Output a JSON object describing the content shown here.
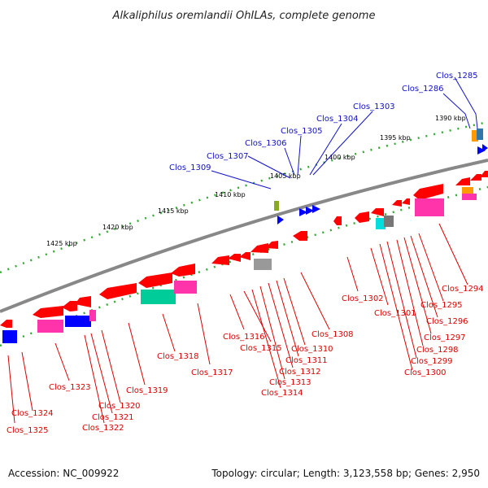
{
  "title": "Alkaliphilus oremlandii OhILAs, complete genome",
  "footer": {
    "accession": "Accession: NC_009922",
    "topology": "Topology: circular; Length: 3,123,558 bp; Genes: 2,950"
  },
  "colors": {
    "forward_gene": "#ff0000",
    "reverse_gene": "#ff0000",
    "blue_gene": "#0000ff",
    "pink_feature": "#ff33aa",
    "teal_feature": "#00cc99",
    "grey_feature": "#999999",
    "orange_feature": "#ff9900",
    "olive_feature": "#88aa22",
    "backbone": "#888888",
    "ruler_dots": "#33aa33",
    "label_blue": "#1111cc",
    "label_red": "#dd0000"
  },
  "ruler_labels": [
    "1425 kbp",
    "1420 kbp",
    "1415 kbp",
    "1410 kbp",
    "1405 kbp",
    "1400 kbp",
    "1395 kbp",
    "1390 kbp"
  ],
  "top_labels": [
    "Clos_1285",
    "Clos_1286",
    "Clos_1303",
    "Clos_1304",
    "Clos_1305",
    "Clos_1306",
    "Clos_1307",
    "Clos_1309"
  ],
  "bottom_labels": [
    "Clos_1294",
    "Clos_1295",
    "Clos_1296",
    "Clos_1297",
    "Clos_1298",
    "Clos_1299",
    "Clos_1300",
    "Clos_1301",
    "Clos_1302",
    "Clos_1308",
    "Clos_1310",
    "Clos_1311",
    "Clos_1312",
    "Clos_1313",
    "Clos_1314",
    "Clos_1315",
    "Clos_1316",
    "Clos_1317",
    "Clos_1318",
    "Clos_1319",
    "Clos_1320",
    "Clos_1321",
    "Clos_1322",
    "Clos_1323",
    "Clos_1324",
    "Clos_1325"
  ]
}
